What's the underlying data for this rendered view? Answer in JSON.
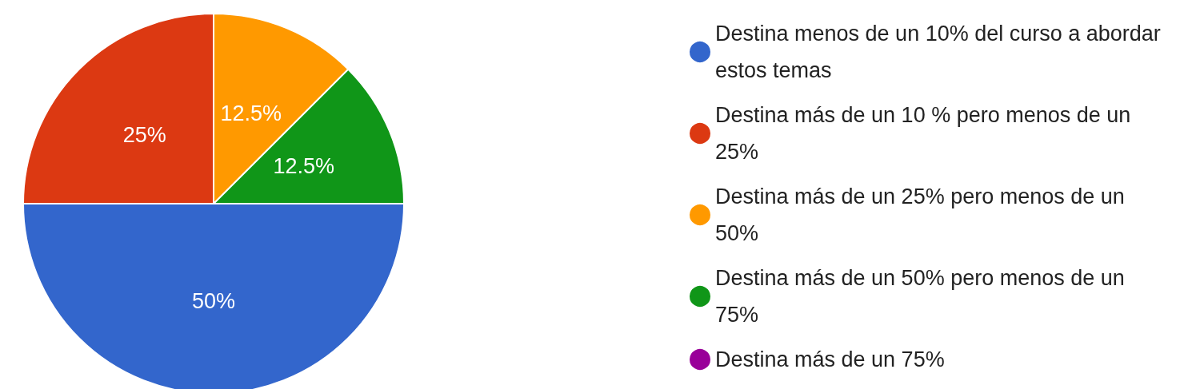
{
  "chart_data": {
    "type": "pie",
    "categories": [
      "Destina menos de un 10% del curso a abordar estos temas",
      "Destina más de un 10 % pero menos de un 25%",
      "Destina más de un 25% pero menos de un 50%",
      "Destina más de un 50% pero menos de un 75%",
      "Destina más de un 75%"
    ],
    "values": [
      50,
      25,
      12.5,
      12.5,
      0
    ],
    "value_labels": [
      "50%",
      "25%",
      "12.5%",
      "12.5%",
      null
    ],
    "colors": [
      "#3366cc",
      "#dc3912",
      "#ff9900",
      "#109618",
      "#990099"
    ],
    "legend": "right"
  }
}
